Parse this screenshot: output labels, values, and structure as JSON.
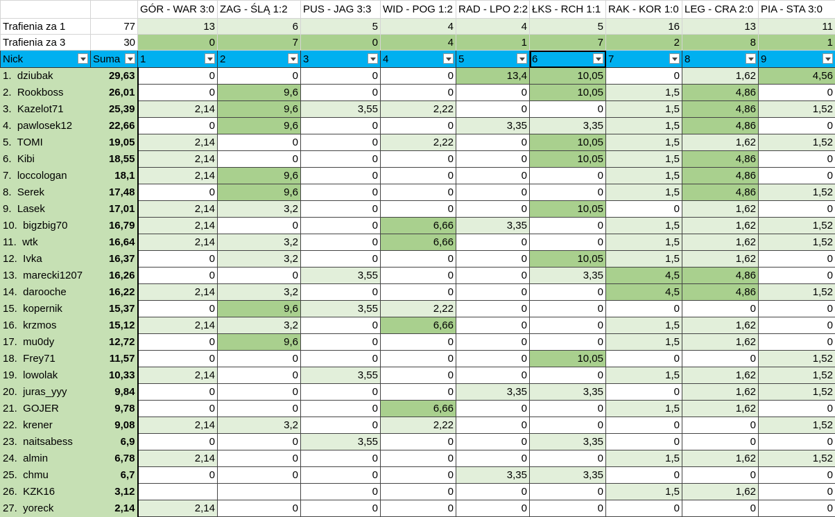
{
  "top_row": {
    "matches": [
      "GÓR - WAR 3:0",
      "ZAG - ŚLĄ 1:2",
      "PUS - JAG 3:3",
      "WID - POG 1:2",
      "RAD - LPO 2:2",
      "ŁKS - RCH 1:1",
      "RAK - KOR 1:0",
      "LEG - CRA 2:0",
      "PIA - STA 3:0"
    ]
  },
  "summary_rows": [
    {
      "label": "Trafienia za 1",
      "total": "77",
      "values": [
        "13",
        "6",
        "5",
        "4",
        "4",
        "5",
        "16",
        "13",
        "11"
      ]
    },
    {
      "label": "Trafienia za 3",
      "total": "30",
      "values": [
        "0",
        "7",
        "0",
        "4",
        "1",
        "7",
        "2",
        "8",
        "1"
      ]
    }
  ],
  "header": {
    "nick": "Nick",
    "suma": "Suma",
    "columns": [
      "1",
      "2",
      "3",
      "4",
      "5",
      "6",
      "7",
      "8",
      "9"
    ]
  },
  "rows": [
    {
      "nick": "1.  dziubak",
      "suma": "29,63",
      "values": [
        "0",
        "0",
        "0",
        "0",
        "13,4",
        "10,05",
        "0",
        "1,62",
        "4,56"
      ]
    },
    {
      "nick": "2.  Rookboss",
      "suma": "26,01",
      "values": [
        "0",
        "9,6",
        "0",
        "0",
        "0",
        "10,05",
        "1,5",
        "4,86",
        "0"
      ]
    },
    {
      "nick": "3.  Kazelot71",
      "suma": "25,39",
      "values": [
        "2,14",
        "9,6",
        "3,55",
        "2,22",
        "0",
        "0",
        "1,5",
        "4,86",
        "1,52"
      ]
    },
    {
      "nick": "4.  pawlosek12",
      "suma": "22,66",
      "values": [
        "0",
        "9,6",
        "0",
        "0",
        "3,35",
        "3,35",
        "1,5",
        "4,86",
        "0"
      ]
    },
    {
      "nick": "5.  TOMI",
      "suma": "19,05",
      "values": [
        "2,14",
        "0",
        "0",
        "2,22",
        "0",
        "10,05",
        "1,5",
        "1,62",
        "1,52"
      ]
    },
    {
      "nick": "6.  Kibi",
      "suma": "18,55",
      "values": [
        "2,14",
        "0",
        "0",
        "0",
        "0",
        "10,05",
        "1,5",
        "4,86",
        "0"
      ]
    },
    {
      "nick": "7.  loccologan",
      "suma": "18,1",
      "values": [
        "2,14",
        "9,6",
        "0",
        "0",
        "0",
        "0",
        "1,5",
        "4,86",
        "0"
      ]
    },
    {
      "nick": "8.  Serek",
      "suma": "17,48",
      "values": [
        "0",
        "9,6",
        "0",
        "0",
        "0",
        "0",
        "1,5",
        "4,86",
        "1,52"
      ]
    },
    {
      "nick": "9.  Lasek",
      "suma": "17,01",
      "values": [
        "2,14",
        "3,2",
        "0",
        "0",
        "0",
        "10,05",
        "0",
        "1,62",
        "0"
      ]
    },
    {
      "nick": "10.  bigzbig70",
      "suma": "16,79",
      "values": [
        "2,14",
        "0",
        "0",
        "6,66",
        "3,35",
        "0",
        "1,5",
        "1,62",
        "1,52"
      ]
    },
    {
      "nick": "11.  wtk",
      "suma": "16,64",
      "values": [
        "2,14",
        "3,2",
        "0",
        "6,66",
        "0",
        "0",
        "1,5",
        "1,62",
        "1,52"
      ]
    },
    {
      "nick": "12.  Ivka",
      "suma": "16,37",
      "values": [
        "0",
        "3,2",
        "0",
        "0",
        "0",
        "10,05",
        "1,5",
        "1,62",
        "0"
      ]
    },
    {
      "nick": "13.  marecki1207",
      "suma": "16,26",
      "values": [
        "0",
        "0",
        "3,55",
        "0",
        "0",
        "3,35",
        "4,5",
        "4,86",
        "0"
      ]
    },
    {
      "nick": "14.  darooche",
      "suma": "16,22",
      "values": [
        "2,14",
        "3,2",
        "0",
        "0",
        "0",
        "0",
        "4,5",
        "4,86",
        "1,52"
      ]
    },
    {
      "nick": "15.  kopernik",
      "suma": "15,37",
      "values": [
        "0",
        "9,6",
        "3,55",
        "2,22",
        "0",
        "0",
        "0",
        "0",
        "0"
      ]
    },
    {
      "nick": "16.  krzmos",
      "suma": "15,12",
      "values": [
        "2,14",
        "3,2",
        "0",
        "6,66",
        "0",
        "0",
        "1,5",
        "1,62",
        "0"
      ]
    },
    {
      "nick": "17.  mu0dy",
      "suma": "12,72",
      "values": [
        "0",
        "9,6",
        "0",
        "0",
        "0",
        "0",
        "1,5",
        "1,62",
        "0"
      ]
    },
    {
      "nick": "18.  Frey71",
      "suma": "11,57",
      "values": [
        "0",
        "0",
        "0",
        "0",
        "0",
        "10,05",
        "0",
        "0",
        "1,52"
      ]
    },
    {
      "nick": "19.  lowolak",
      "suma": "10,33",
      "values": [
        "2,14",
        "0",
        "3,55",
        "0",
        "0",
        "0",
        "1,5",
        "1,62",
        "1,52"
      ]
    },
    {
      "nick": "20.  juras_yyy",
      "suma": "9,84",
      "values": [
        "0",
        "0",
        "0",
        "0",
        "3,35",
        "3,35",
        "0",
        "1,62",
        "1,52"
      ]
    },
    {
      "nick": "21.  GOJER",
      "suma": "9,78",
      "values": [
        "0",
        "0",
        "0",
        "6,66",
        "0",
        "0",
        "1,5",
        "1,62",
        "0"
      ]
    },
    {
      "nick": "22.  krener",
      "suma": "9,08",
      "values": [
        "2,14",
        "3,2",
        "0",
        "2,22",
        "0",
        "0",
        "0",
        "0",
        "1,52"
      ]
    },
    {
      "nick": "23.  naitsabess",
      "suma": "6,9",
      "values": [
        "0",
        "0",
        "3,55",
        "0",
        "0",
        "3,35",
        "0",
        "0",
        "0"
      ]
    },
    {
      "nick": "24.  almin",
      "suma": "6,78",
      "values": [
        "2,14",
        "0",
        "0",
        "0",
        "0",
        "0",
        "1,5",
        "1,62",
        "1,52"
      ]
    },
    {
      "nick": "25.  chmu",
      "suma": "6,7",
      "values": [
        "0",
        "0",
        "0",
        "0",
        "3,35",
        "3,35",
        "0",
        "0",
        "0"
      ]
    },
    {
      "nick": "26.  KZK16",
      "suma": "3,12",
      "values": [
        null,
        null,
        "0",
        "0",
        "0",
        "0",
        "1,5",
        "1,62",
        "0"
      ]
    },
    {
      "nick": "27.  yoreck",
      "suma": "2,14",
      "values": [
        "2,14",
        "0",
        "0",
        "0",
        "0",
        "0",
        "0",
        "0",
        "0"
      ]
    }
  ]
}
